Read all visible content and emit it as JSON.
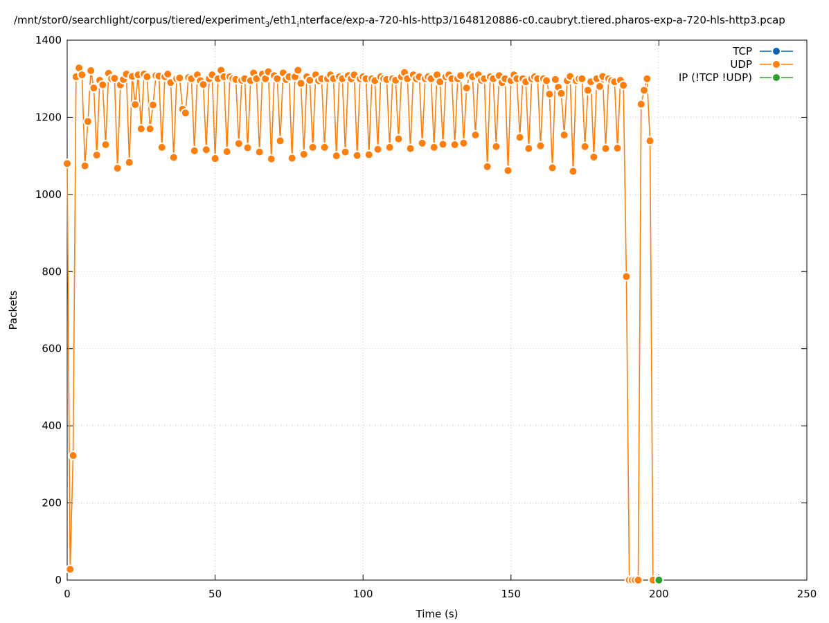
{
  "chart_data": {
    "type": "line",
    "title": [
      "/mnt/stor0/searchlight/corpus/tiered/experiment",
      "3",
      "/eth1",
      "i",
      "nterface/exp-a-720-hls-http3/1648120886-c0.caubryt.tiered.pharos-exp-a-720-hls-http3.pcap"
    ],
    "x_label": "Time (s)",
    "y_label": "Packets",
    "xlim": [
      0,
      250
    ],
    "xticks": [
      0,
      50,
      100,
      150,
      200,
      250
    ],
    "ylim": [
      0,
      1400
    ],
    "yticks": [
      0,
      200,
      400,
      600,
      800,
      1000,
      1200,
      1400
    ],
    "grid": true,
    "legend": "upper right",
    "markers": true,
    "series": [
      {
        "name": "TCP",
        "color": "#0b62b0",
        "x": [],
        "values": []
      },
      {
        "name": "UDP",
        "color": "#ff7f0e",
        "x": [
          0,
          1,
          2,
          3,
          4,
          5,
          6,
          7,
          8,
          9,
          10,
          11,
          12,
          13,
          14,
          15,
          16,
          17,
          18,
          19,
          20,
          21,
          22,
          23,
          24,
          25,
          26,
          27,
          28,
          29,
          30,
          31,
          32,
          33,
          34,
          35,
          36,
          37,
          38,
          39,
          40,
          41,
          42,
          43,
          44,
          45,
          46,
          47,
          48,
          49,
          50,
          51,
          52,
          53,
          54,
          55,
          56,
          57,
          58,
          59,
          60,
          61,
          62,
          63,
          64,
          65,
          66,
          67,
          68,
          69,
          70,
          71,
          72,
          73,
          74,
          75,
          76,
          77,
          78,
          79,
          80,
          81,
          82,
          83,
          84,
          85,
          86,
          87,
          88,
          89,
          90,
          91,
          92,
          93,
          94,
          95,
          96,
          97,
          98,
          99,
          100,
          101,
          102,
          103,
          104,
          105,
          106,
          107,
          108,
          109,
          110,
          111,
          112,
          113,
          114,
          115,
          116,
          117,
          118,
          119,
          120,
          121,
          122,
          123,
          124,
          125,
          126,
          127,
          128,
          129,
          130,
          131,
          132,
          133,
          134,
          135,
          136,
          137,
          138,
          139,
          140,
          141,
          142,
          143,
          144,
          145,
          146,
          147,
          148,
          149,
          150,
          151,
          152,
          153,
          154,
          155,
          156,
          157,
          158,
          159,
          160,
          161,
          162,
          163,
          164,
          165,
          166,
          167,
          168,
          169,
          170,
          171,
          172,
          173,
          174,
          175,
          176,
          177,
          178,
          179,
          180,
          181,
          182,
          183,
          184,
          185,
          186,
          187,
          188,
          189,
          190,
          191,
          192,
          193,
          194,
          195,
          196,
          197,
          198
        ],
        "values": [
          1080,
          28,
          323,
          1305,
          1328,
          1310,
          1074,
          1189,
          1321,
          1276,
          1102,
          1296,
          1284,
          1129,
          1314,
          1300,
          1301,
          1068,
          1284,
          1298,
          1312,
          1083,
          1306,
          1233,
          1310,
          1170,
          1312,
          1305,
          1170,
          1232,
          1308,
          1307,
          1122,
          1305,
          1312,
          1290,
          1096,
          1300,
          1302,
          1221,
          1211,
          1303,
          1300,
          1113,
          1310,
          1295,
          1285,
          1116,
          1300,
          1310,
          1093,
          1300,
          1322,
          1305,
          1111,
          1305,
          1300,
          1298,
          1132,
          1296,
          1300,
          1121,
          1295,
          1315,
          1300,
          1110,
          1312,
          1300,
          1318,
          1092,
          1308,
          1300,
          1139,
          1315,
          1298,
          1305,
          1094,
          1305,
          1322,
          1288,
          1104,
          1305,
          1296,
          1122,
          1310,
          1295,
          1300,
          1122,
          1300,
          1310,
          1300,
          1100,
          1305,
          1300,
          1110,
          1308,
          1300,
          1310,
          1101,
          1300,
          1305,
          1300,
          1103,
          1300,
          1295,
          1117,
          1305,
          1300,
          1298,
          1122,
          1300,
          1296,
          1144,
          1305,
          1316,
          1300,
          1119,
          1310,
          1300,
          1305,
          1133,
          1300,
          1305,
          1300,
          1122,
          1310,
          1292,
          1130,
          1305,
          1310,
          1300,
          1129,
          1300,
          1308,
          1133,
          1276,
          1310,
          1305,
          1154,
          1310,
          1296,
          1300,
          1072,
          1305,
          1300,
          1124,
          1308,
          1290,
          1300,
          1062,
          1295,
          1310,
          1300,
          1148,
          1300,
          1292,
          1119,
          1300,
          1305,
          1300,
          1126,
          1300,
          1295,
          1260,
          1069,
          1298,
          1278,
          1262,
          1154,
          1295,
          1306,
          1060,
          1295,
          1300,
          1300,
          1124,
          1270,
          1292,
          1097,
          1300,
          1280,
          1306,
          1119,
          1300,
          1295,
          1292,
          1120,
          1296,
          1283,
          787,
          0,
          0,
          0,
          0,
          1234,
          1270,
          1300,
          1139,
          0
        ]
      },
      {
        "name": "IP (!TCP  !UDP)",
        "color": "#2ca02c",
        "x": [
          200
        ],
        "values": [
          0
        ]
      }
    ]
  }
}
